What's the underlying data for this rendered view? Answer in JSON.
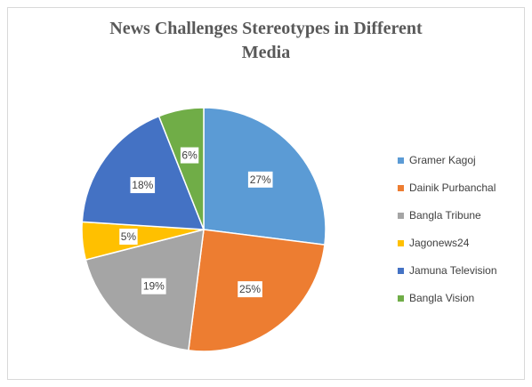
{
  "chart_data": {
    "type": "pie",
    "title_lines": [
      "News Challenges Stereotypes in Different",
      "Media"
    ],
    "categories": [
      "Gramer Kagoj",
      "Dainik Purbanchal",
      "Bangla Tribune",
      "Jagonews24",
      "Jamuna Television",
      "Bangla Vision"
    ],
    "values": [
      27,
      25,
      19,
      5,
      18,
      6
    ],
    "data_labels": [
      "27%",
      "25%",
      "19%",
      "5%",
      "18%",
      "6%"
    ],
    "colors": [
      "#5b9bd5",
      "#ed7d31",
      "#a5a5a5",
      "#ffc000",
      "#4472c4",
      "#70ad47"
    ],
    "legend_position": "right",
    "start_angle": "12 o'clock, clockwise"
  }
}
